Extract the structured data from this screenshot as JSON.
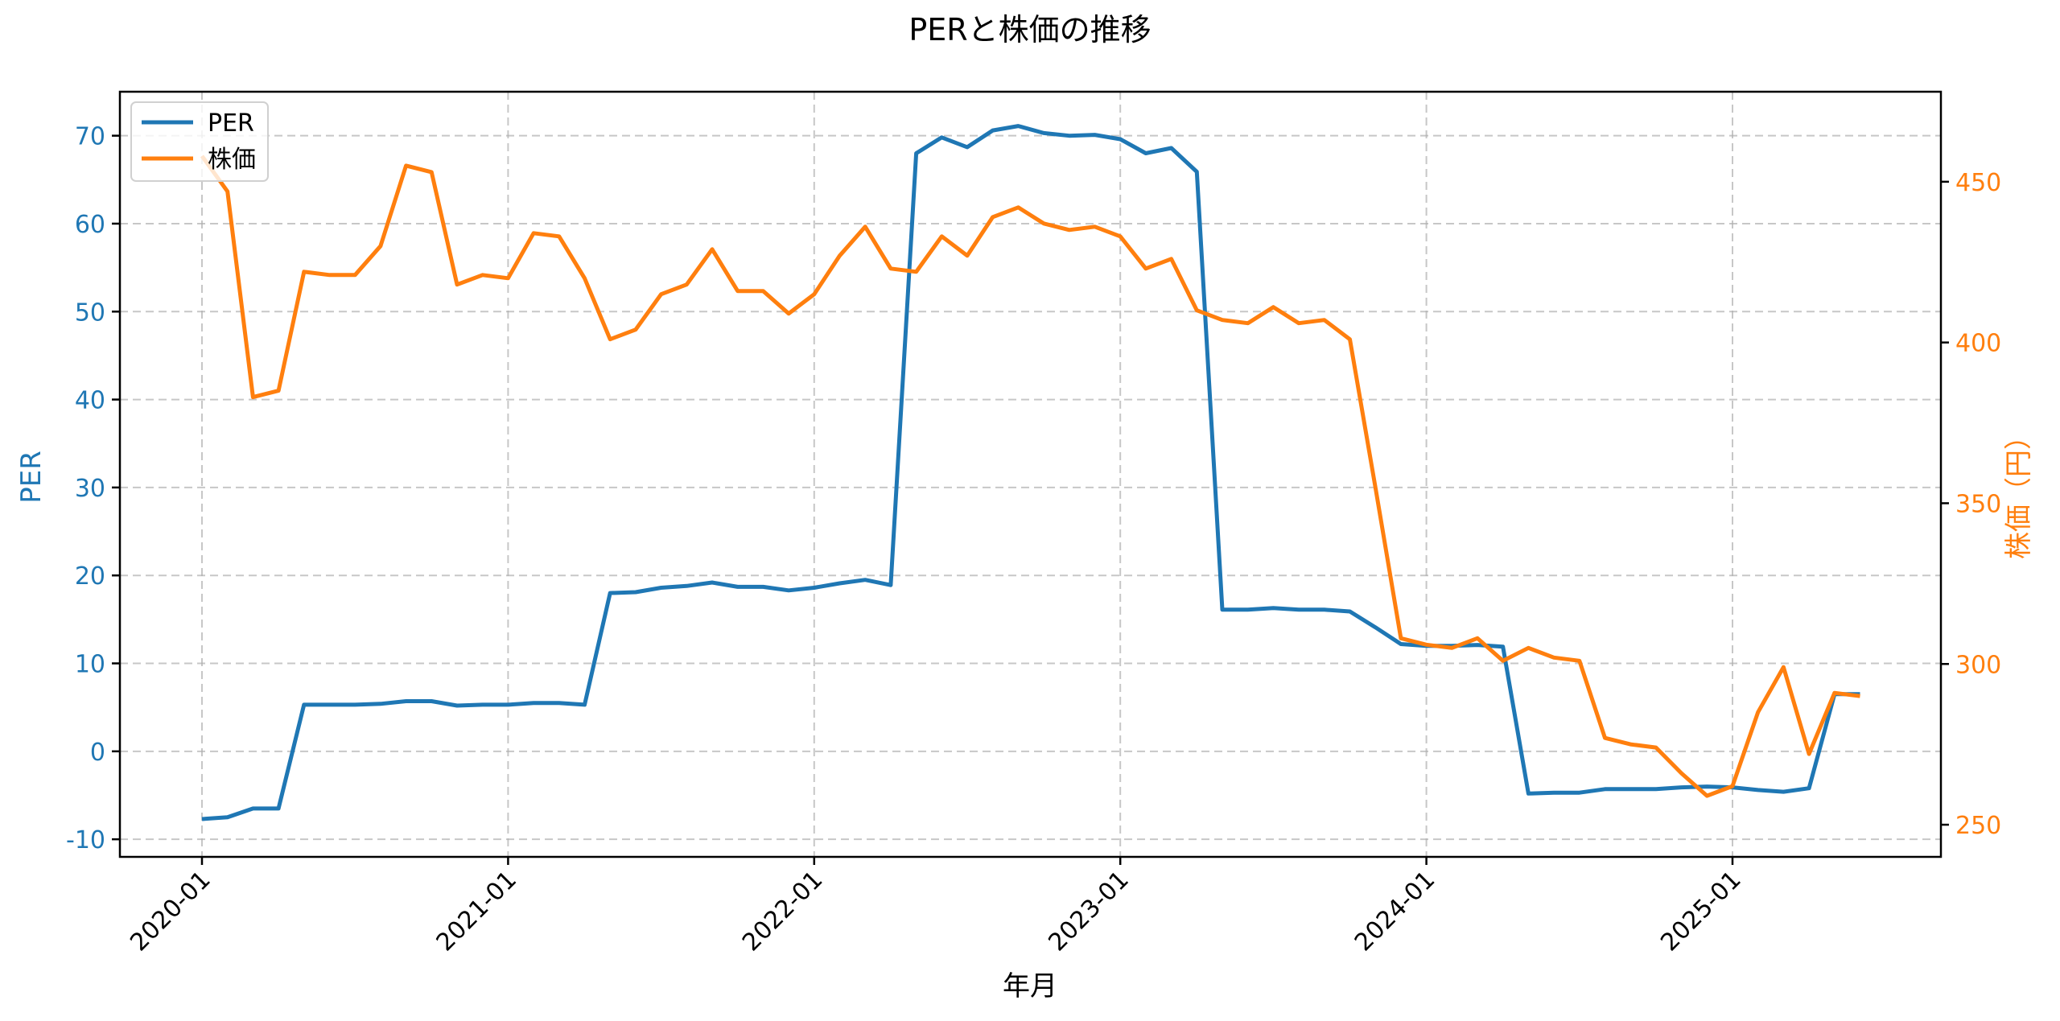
{
  "chart_data": {
    "type": "line",
    "title": "PERと株価の推移",
    "xlabel": "年月",
    "ylabel": "PER",
    "ylabel_right": "株価（円）",
    "ylim": [
      -12,
      75
    ],
    "ylim_right": [
      240,
      478
    ],
    "grid": true,
    "legend_position": "upper left",
    "x_ticks": [
      "2020-01",
      "2021-01",
      "2022-01",
      "2023-01",
      "2024-01",
      "2025-01"
    ],
    "y_ticks_left": [
      -10,
      0,
      10,
      20,
      30,
      40,
      50,
      60,
      70
    ],
    "y_ticks_right": [
      250,
      300,
      350,
      400,
      450
    ],
    "x": [
      "2020-01",
      "2020-02",
      "2020-03",
      "2020-04",
      "2020-05",
      "2020-06",
      "2020-07",
      "2020-08",
      "2020-09",
      "2020-10",
      "2020-11",
      "2020-12",
      "2021-01",
      "2021-02",
      "2021-03",
      "2021-04",
      "2021-05",
      "2021-06",
      "2021-07",
      "2021-08",
      "2021-09",
      "2021-10",
      "2021-11",
      "2021-12",
      "2022-01",
      "2022-02",
      "2022-03",
      "2022-04",
      "2022-05",
      "2022-06",
      "2022-07",
      "2022-08",
      "2022-09",
      "2022-10",
      "2022-11",
      "2022-12",
      "2023-01",
      "2023-02",
      "2023-03",
      "2023-04",
      "2023-05",
      "2023-06",
      "2023-07",
      "2023-08",
      "2023-09",
      "2023-10",
      "2023-11",
      "2023-12",
      "2024-01",
      "2024-02",
      "2024-03",
      "2024-04",
      "2024-05",
      "2024-06",
      "2024-07",
      "2024-08",
      "2024-09",
      "2024-10",
      "2024-11",
      "2024-12",
      "2025-01",
      "2025-02",
      "2025-03",
      "2025-04",
      "2025-05",
      "2025-06"
    ],
    "series": [
      {
        "name": "PER",
        "axis": "left",
        "color": "#1f77b4",
        "values": [
          -7.7,
          -7.5,
          -6.5,
          -6.5,
          5.3,
          5.3,
          5.3,
          5.4,
          5.7,
          5.7,
          5.2,
          5.3,
          5.3,
          5.5,
          5.5,
          5.3,
          18.0,
          18.1,
          18.6,
          18.8,
          19.2,
          18.7,
          18.7,
          18.3,
          18.6,
          19.1,
          19.5,
          18.9,
          68.0,
          69.8,
          68.7,
          70.6,
          71.1,
          70.3,
          70.0,
          70.1,
          69.6,
          68.0,
          68.6,
          65.9,
          16.1,
          16.1,
          16.3,
          16.1,
          16.1,
          15.9,
          14.1,
          12.2,
          12.0,
          12.0,
          12.1,
          11.9,
          -4.8,
          -4.7,
          -4.7,
          -4.3,
          -4.3,
          -4.3,
          -4.1,
          -4.0,
          -4.1,
          -4.4,
          -4.6,
          -4.2,
          6.5,
          6.5
        ]
      },
      {
        "name": "株価",
        "axis": "right",
        "color": "#ff7f0e",
        "values": [
          458,
          447,
          383,
          385,
          422,
          421,
          421,
          430,
          455,
          453,
          418,
          421,
          420,
          434,
          433,
          420,
          401,
          404,
          415,
          418,
          429,
          416,
          416,
          409,
          415,
          427,
          436,
          423,
          422,
          433,
          427,
          439,
          442,
          437,
          435,
          436,
          433,
          423,
          426,
          410,
          407,
          406,
          411,
          406,
          407,
          401,
          355,
          308,
          306,
          305,
          308,
          301,
          305,
          302,
          301,
          277,
          275,
          274,
          266,
          259,
          262,
          285,
          299,
          272,
          291,
          290
        ]
      }
    ]
  },
  "legend": {
    "items": [
      {
        "label": "PER",
        "color": "#1f77b4"
      },
      {
        "label": "株価",
        "color": "#ff7f0e"
      }
    ]
  },
  "colors": {
    "per": "#1f77b4",
    "price": "#ff7f0e",
    "grid": "#b0b0b0",
    "axis": "#000000"
  }
}
